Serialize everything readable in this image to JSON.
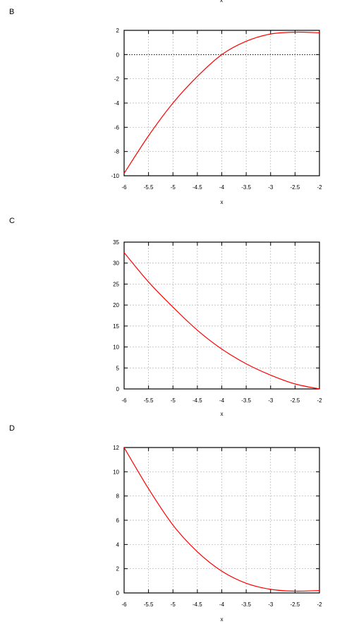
{
  "panels": {
    "b": "B",
    "c": "C",
    "d": "D"
  },
  "top_cut_label": "x",
  "colors": {
    "curve": "#ff0000",
    "frame": "#000000",
    "grid": "#b0b0b0"
  },
  "chart_data": [
    {
      "type": "line",
      "panel": "B",
      "xlabel": "x",
      "ylabel": "",
      "xlim": [
        -6,
        -2
      ],
      "ylim": [
        -10,
        2
      ],
      "x_ticks": [
        "-6",
        "-5.5",
        "-5",
        "-4.5",
        "-4",
        "-3.5",
        "-3",
        "-2.5",
        "-2"
      ],
      "y_ticks": [
        "-10",
        "-8",
        "-6",
        "-4",
        "-2",
        "0",
        "2"
      ],
      "grid": true,
      "zero_line": true,
      "series": [
        {
          "x": [
            -6,
            -5.5,
            -5,
            -4.5,
            -4,
            -3.5,
            -3,
            -2.5,
            -2
          ],
          "y": [
            -9.8,
            -6.7,
            -4.0,
            -1.8,
            0.0,
            1.1,
            1.7,
            1.85,
            1.8
          ]
        }
      ]
    },
    {
      "type": "line",
      "panel": "C",
      "xlabel": "x",
      "ylabel": "",
      "xlim": [
        -6,
        -2
      ],
      "ylim": [
        0,
        35
      ],
      "x_ticks": [
        "-6",
        "-5.5",
        "-5",
        "-4.5",
        "-4",
        "-3.5",
        "-3",
        "-2.5",
        "-2"
      ],
      "y_ticks": [
        "0",
        "5",
        "10",
        "15",
        "20",
        "25",
        "30",
        "35"
      ],
      "grid": true,
      "zero_line": false,
      "series": [
        {
          "x": [
            -6,
            -5.5,
            -5,
            -4.5,
            -4,
            -3.5,
            -3,
            -2.5,
            -2
          ],
          "y": [
            32.5,
            25.5,
            19.5,
            14.0,
            9.5,
            6.0,
            3.3,
            1.2,
            0.0
          ]
        }
      ]
    },
    {
      "type": "line",
      "panel": "D",
      "xlabel": "x",
      "ylabel": "",
      "xlim": [
        -6,
        -2
      ],
      "ylim": [
        0,
        12
      ],
      "x_ticks": [
        "-6",
        "-5.5",
        "-5",
        "-4.5",
        "-4",
        "-3.5",
        "-3",
        "-2.5",
        "-2"
      ],
      "y_ticks": [
        "0",
        "2",
        "4",
        "6",
        "8",
        "10",
        "12"
      ],
      "grid": true,
      "zero_line": false,
      "series": [
        {
          "x": [
            -6,
            -5.5,
            -5,
            -4.5,
            -4,
            -3.5,
            -3,
            -2.5,
            -2
          ],
          "y": [
            12.0,
            8.6,
            5.6,
            3.4,
            1.8,
            0.8,
            0.3,
            0.15,
            0.2
          ]
        }
      ]
    }
  ]
}
